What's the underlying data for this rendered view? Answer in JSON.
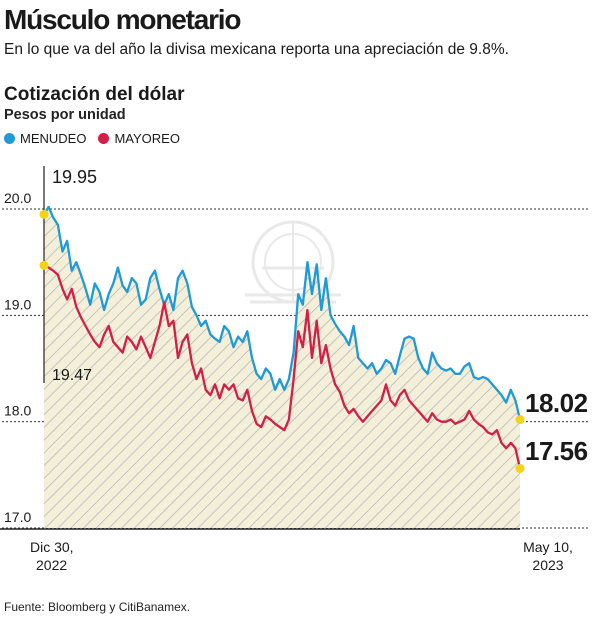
{
  "header": {
    "title": "Músculo monetario",
    "subtitle": "En lo que va del año la divisa mexicana reporta una apreciación de 9.8%."
  },
  "chart_title": "Cotización del dólar",
  "units": "Pesos por unidad",
  "legend": [
    {
      "label": "MENUDEO",
      "color": "#1f9ad6"
    },
    {
      "label": "MAYOREO",
      "color": "#d11f46"
    }
  ],
  "source": "Fuente: Bloomberg y CitiBanamex.",
  "colors": {
    "menudeo": "#1f9ad6",
    "mayoreo": "#d11f46",
    "highlight": "#f2d21b",
    "fill": "#f3efd9",
    "hatch": "#bdbdbd"
  },
  "chart_data": {
    "type": "line",
    "x_labels": [
      {
        "date": "Dic 30, 2022",
        "line1": "Dic 30,",
        "line2": "2022"
      },
      {
        "date": "May 10, 2023",
        "line1": "May 10,",
        "line2": "2023"
      }
    ],
    "ylim": [
      17.0,
      20.0
    ],
    "yticks": [
      "20.0",
      "19.0",
      "18.0",
      "17.0"
    ],
    "grid": true,
    "legend_position": "top-left",
    "annotations": {
      "menudeo_start": "19.95",
      "mayoreo_start": "19.47",
      "menudeo_end": "18.02",
      "mayoreo_end": "17.56"
    },
    "series": [
      {
        "name": "MENUDEO",
        "color": "#1f9ad6",
        "values": [
          19.95,
          20.02,
          19.92,
          19.85,
          19.6,
          19.7,
          19.42,
          19.5,
          19.38,
          19.25,
          19.1,
          19.3,
          19.22,
          19.05,
          19.2,
          19.3,
          19.45,
          19.28,
          19.22,
          19.35,
          19.3,
          19.1,
          19.15,
          19.35,
          19.42,
          19.25,
          19.1,
          19.2,
          19.05,
          19.35,
          19.42,
          19.3,
          19.08,
          19.0,
          18.9,
          18.95,
          18.82,
          18.78,
          18.75,
          18.9,
          18.85,
          18.7,
          18.8,
          18.75,
          18.85,
          18.6,
          18.45,
          18.4,
          18.5,
          18.45,
          18.3,
          18.4,
          18.3,
          18.4,
          18.65,
          19.2,
          19.1,
          19.5,
          19.2,
          19.48,
          19.05,
          19.35,
          19.0,
          18.92,
          18.85,
          18.8,
          18.72,
          18.9,
          18.6,
          18.55,
          18.5,
          18.55,
          18.45,
          18.5,
          18.58,
          18.55,
          18.45,
          18.62,
          18.78,
          18.8,
          18.78,
          18.6,
          18.5,
          18.45,
          18.65,
          18.55,
          18.5,
          18.48,
          18.5,
          18.45,
          18.45,
          18.52,
          18.55,
          18.42,
          18.4,
          18.42,
          18.4,
          18.35,
          18.3,
          18.25,
          18.18,
          18.3,
          18.2,
          18.02
        ]
      },
      {
        "name": "MAYOREO",
        "color": "#d11f46",
        "values": [
          19.47,
          19.45,
          19.42,
          19.38,
          19.25,
          19.15,
          19.25,
          19.08,
          18.98,
          18.9,
          18.82,
          18.75,
          18.7,
          18.82,
          18.9,
          18.75,
          18.7,
          18.65,
          18.8,
          18.75,
          18.68,
          18.8,
          18.7,
          18.6,
          18.75,
          18.9,
          19.12,
          18.9,
          18.95,
          18.6,
          18.75,
          18.82,
          18.55,
          18.4,
          18.5,
          18.3,
          18.25,
          18.35,
          18.22,
          18.35,
          18.3,
          18.35,
          18.22,
          18.2,
          18.3,
          18.1,
          17.98,
          17.95,
          18.05,
          18.02,
          17.98,
          17.95,
          17.92,
          18.02,
          18.4,
          18.85,
          18.7,
          19.05,
          18.6,
          18.95,
          18.55,
          18.72,
          18.5,
          18.35,
          18.28,
          18.15,
          18.08,
          18.12,
          18.05,
          18.0,
          18.05,
          18.1,
          18.15,
          18.2,
          18.35,
          18.2,
          18.15,
          18.25,
          18.3,
          18.2,
          18.15,
          18.1,
          18.05,
          18.0,
          18.08,
          18.02,
          18.0,
          18.0,
          18.02,
          17.98,
          18.0,
          18.02,
          18.1,
          18.02,
          17.98,
          17.95,
          17.9,
          17.88,
          17.92,
          17.8,
          17.75,
          17.8,
          17.75,
          17.56
        ]
      }
    ]
  }
}
